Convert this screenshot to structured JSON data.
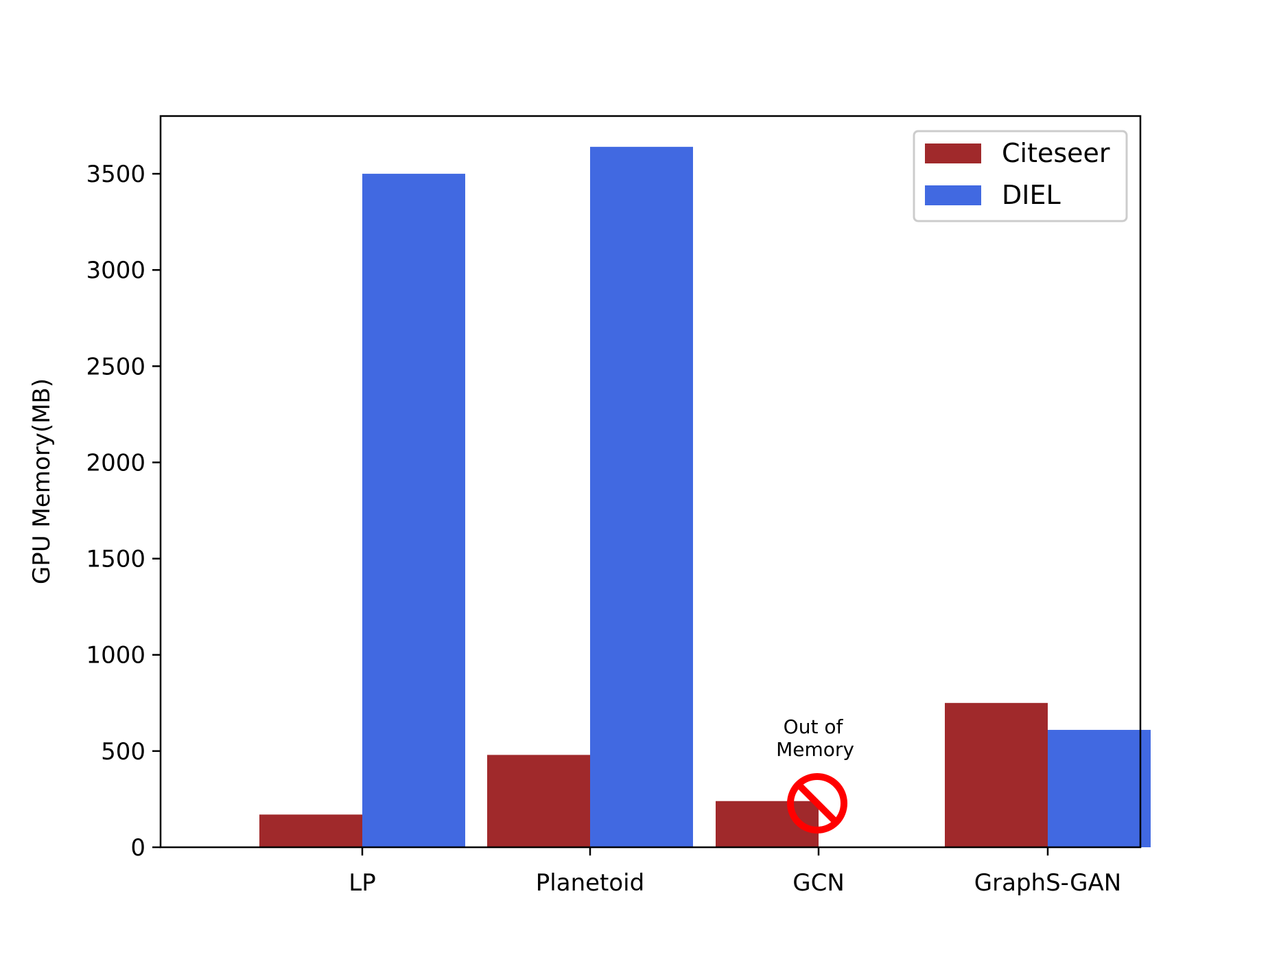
{
  "chart_data": {
    "type": "bar",
    "xlabel": "",
    "ylabel": "GPU Memory(MB)",
    "ylim": [
      0,
      3800
    ],
    "yticks": [
      0,
      500,
      1000,
      1500,
      2000,
      2500,
      3000,
      3500
    ],
    "categories": [
      "LP",
      "Planetoid",
      "GCN",
      "GraphS-GAN"
    ],
    "series": [
      {
        "name": "Citeseer",
        "color": "#a0292b",
        "values": [
          170,
          480,
          240,
          750
        ]
      },
      {
        "name": "DIEL",
        "color": "#4169e1",
        "values": [
          3500,
          3640,
          null,
          610
        ]
      }
    ],
    "legend_position": "top-right",
    "grid": false,
    "annotation": {
      "category": "GCN",
      "series": "DIEL",
      "text_line1": "Out of",
      "text_line2": "Memory",
      "icon": "no-entry-icon",
      "icon_color": "#ff0000"
    }
  }
}
